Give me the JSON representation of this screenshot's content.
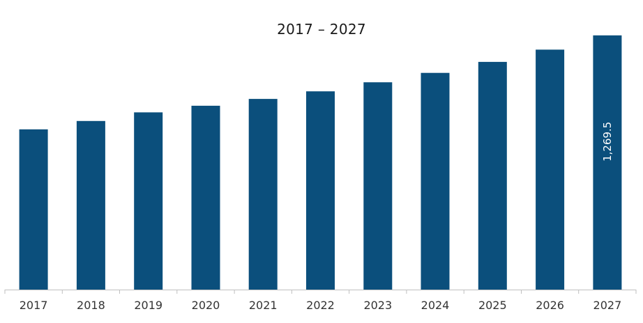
{
  "chart_data": {
    "type": "bar",
    "title": "2017 – 2027",
    "xlabel": "",
    "ylabel": "",
    "categories": [
      "2017",
      "2018",
      "2019",
      "2020",
      "2021",
      "2022",
      "2023",
      "2024",
      "2025",
      "2026",
      "2027"
    ],
    "values": [
      800,
      842,
      885,
      918,
      952,
      990,
      1035,
      1082,
      1137,
      1198,
      1269.5
    ],
    "data_labels": [
      null,
      null,
      null,
      null,
      null,
      null,
      null,
      null,
      null,
      null,
      "1,269.5"
    ],
    "ylim": [
      0,
      1300
    ],
    "grid": false,
    "legend": "none",
    "bar_color": "#0b4f7c",
    "axis_color": "#bfbfbf"
  }
}
